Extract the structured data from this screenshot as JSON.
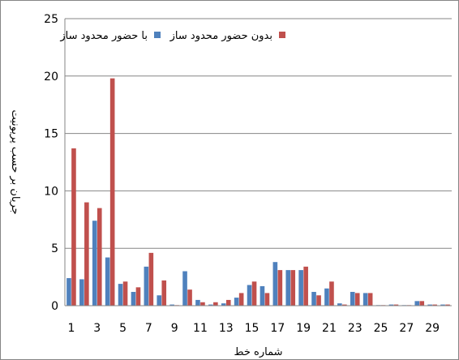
{
  "chart_data": {
    "type": "bar",
    "title": "",
    "xlabel": "شماره خط",
    "ylabel": "جریان بر حسب پریونیت",
    "ylim": [
      0,
      25
    ],
    "yticks": [
      0,
      5,
      10,
      15,
      20,
      25
    ],
    "x_tick_labels": [
      1,
      3,
      5,
      7,
      9,
      11,
      13,
      15,
      17,
      19,
      21,
      23,
      25,
      27,
      29
    ],
    "categories": [
      1,
      2,
      3,
      4,
      5,
      6,
      7,
      8,
      9,
      10,
      11,
      12,
      13,
      14,
      15,
      16,
      17,
      18,
      19,
      20,
      21,
      22,
      23,
      24,
      25,
      26,
      27,
      28,
      29,
      30
    ],
    "grid": "horizontal-major",
    "legend_position": "top",
    "series": [
      {
        "name": "با حضور محدود ساز",
        "color": "#4F81BD",
        "values": [
          2.4,
          2.3,
          7.4,
          4.2,
          1.9,
          1.2,
          3.4,
          0.9,
          0.1,
          3.0,
          0.5,
          0.1,
          0.2,
          0.7,
          1.8,
          1.7,
          3.8,
          3.1,
          3.1,
          1.2,
          1.5,
          0.2,
          1.2,
          1.1,
          0.05,
          0.1,
          0.05,
          0.4,
          0.1,
          0.1
        ]
      },
      {
        "name": "بدون حضور محدود ساز",
        "color": "#C0504D",
        "values": [
          13.7,
          9.0,
          8.5,
          19.8,
          2.1,
          1.6,
          4.6,
          2.2,
          0.05,
          1.4,
          0.3,
          0.3,
          0.5,
          1.1,
          2.1,
          1.1,
          3.1,
          3.1,
          3.4,
          0.9,
          2.1,
          0.1,
          1.1,
          1.1,
          0.05,
          0.1,
          0.05,
          0.4,
          0.1,
          0.1
        ]
      }
    ]
  }
}
